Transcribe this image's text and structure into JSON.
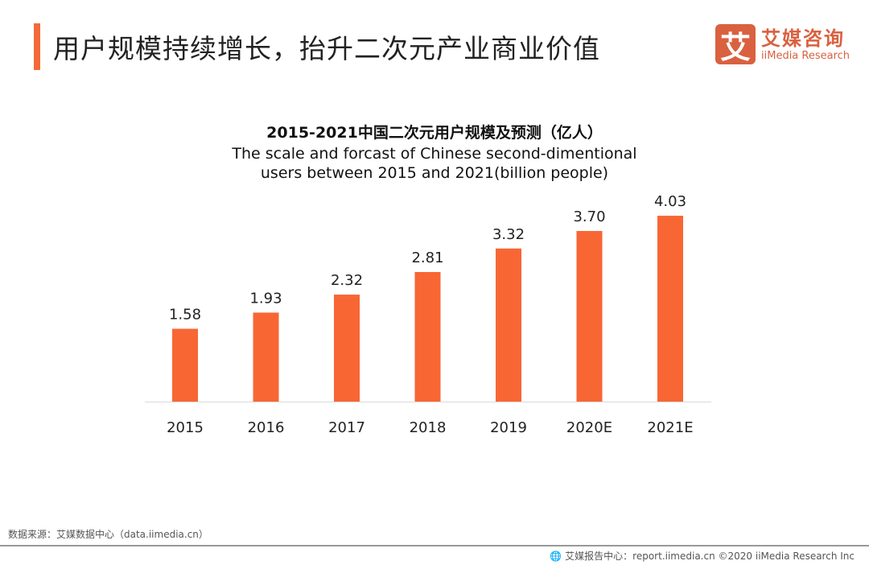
{
  "header": {
    "title": "用户规模持续增长，抬升二次元产业商业价值"
  },
  "logo": {
    "mark": "艾",
    "cn": "艾媒咨询",
    "en": "iiMedia Research"
  },
  "chart_data": {
    "type": "bar",
    "title": "2015-2021中国二次元用户规模及预测（亿人）",
    "subtitle_line1": "The scale and forcast of Chinese second-dimentional",
    "subtitle_line2": "users between 2015 and 2021(billion people)",
    "categories": [
      "2015",
      "2016",
      "2017",
      "2018",
      "2019",
      "2020E",
      "2021E"
    ],
    "values": [
      1.58,
      1.93,
      2.32,
      2.81,
      3.32,
      3.7,
      4.03
    ],
    "labels": [
      "1.58",
      "1.93",
      "2.32",
      "2.81",
      "3.32",
      "3.70",
      "4.03"
    ],
    "ylim": [
      0,
      4.5
    ],
    "color": "#f86634",
    "grid": false
  },
  "footer": {
    "source": "数据来源：艾媒数据中心（data.iimedia.cn）",
    "copyright": "艾媒报告中心：report.iimedia.cn ©2020  iiMedia Research  Inc"
  }
}
